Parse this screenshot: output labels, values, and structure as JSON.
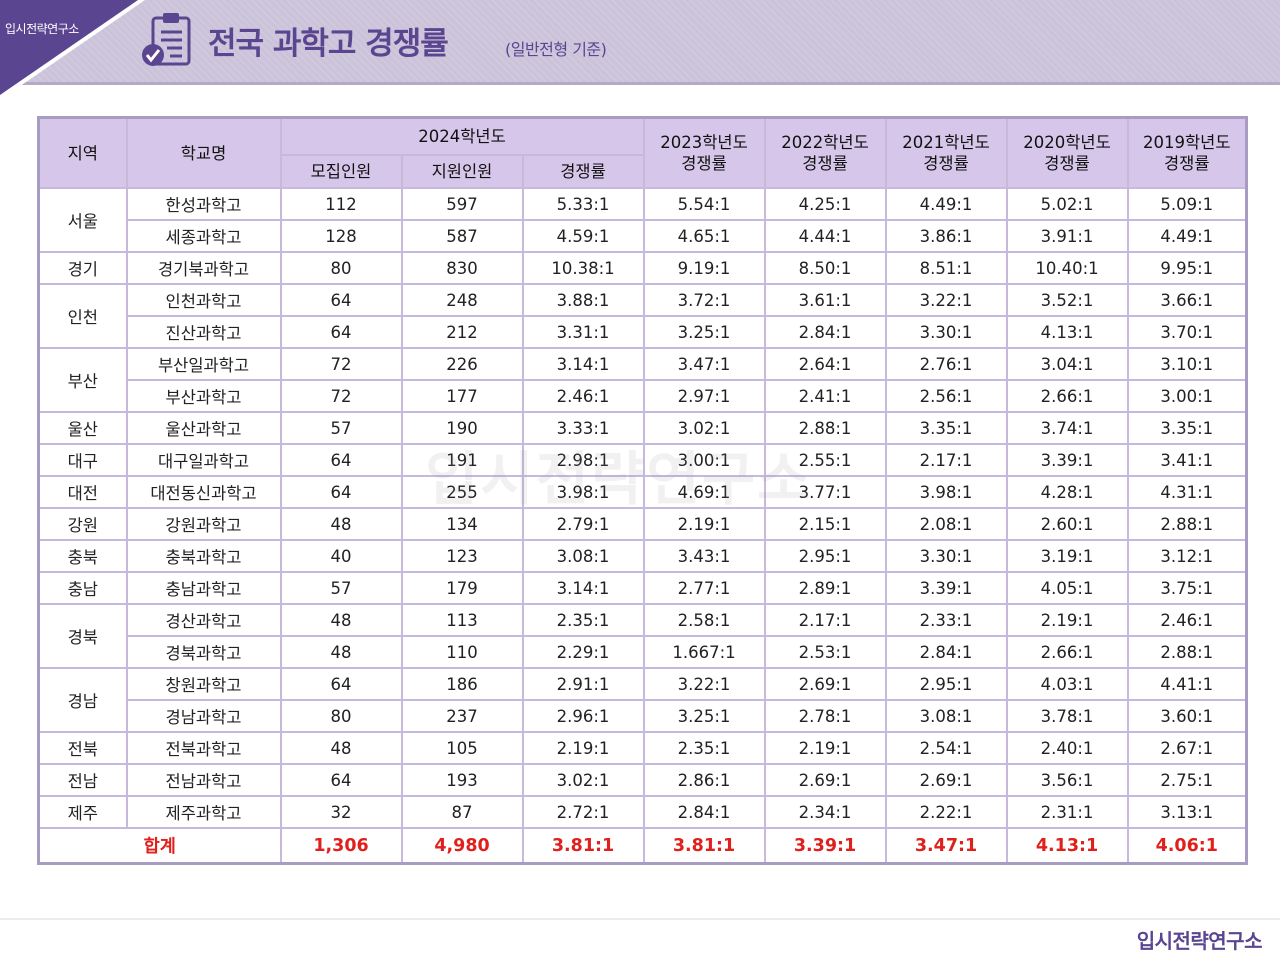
{
  "brand": "입시전략연구소",
  "title": "전국 과학고 경쟁률",
  "subtitle": "(일반전형 기준)",
  "watermark": "입시전략연구소",
  "table": {
    "header_region": "지역",
    "header_school": "학교명",
    "header_2024": "2024학년도",
    "sub_headers": [
      "모집인원",
      "지원인원",
      "경쟁률"
    ],
    "years": [
      {
        "year": "2023학년도",
        "label": "경쟁률"
      },
      {
        "year": "2022학년도",
        "label": "경쟁률"
      },
      {
        "year": "2021학년도",
        "label": "경쟁률"
      },
      {
        "year": "2020학년도",
        "label": "경쟁률"
      },
      {
        "year": "2019학년도",
        "label": "경쟁률"
      }
    ],
    "regions": [
      {
        "name": "서울",
        "schools": [
          {
            "school": "한성과학고",
            "recruit": "112",
            "applicants": "597",
            "rates": [
              "5.33:1",
              "5.54:1",
              "4.25:1",
              "4.49:1",
              "5.02:1",
              "5.09:1"
            ]
          },
          {
            "school": "세종과학고",
            "recruit": "128",
            "applicants": "587",
            "rates": [
              "4.59:1",
              "4.65:1",
              "4.44:1",
              "3.86:1",
              "3.91:1",
              "4.49:1"
            ]
          }
        ]
      },
      {
        "name": "경기",
        "schools": [
          {
            "school": "경기북과학고",
            "recruit": "80",
            "applicants": "830",
            "rates": [
              "10.38:1",
              "9.19:1",
              "8.50:1",
              "8.51:1",
              "10.40:1",
              "9.95:1"
            ]
          }
        ]
      },
      {
        "name": "인천",
        "schools": [
          {
            "school": "인천과학고",
            "recruit": "64",
            "applicants": "248",
            "rates": [
              "3.88:1",
              "3.72:1",
              "3.61:1",
              "3.22:1",
              "3.52:1",
              "3.66:1"
            ]
          },
          {
            "school": "진산과학고",
            "recruit": "64",
            "applicants": "212",
            "rates": [
              "3.31:1",
              "3.25:1",
              "2.84:1",
              "3.30:1",
              "4.13:1",
              "3.70:1"
            ]
          }
        ]
      },
      {
        "name": "부산",
        "schools": [
          {
            "school": "부산일과학고",
            "recruit": "72",
            "applicants": "226",
            "rates": [
              "3.14:1",
              "3.47:1",
              "2.64:1",
              "2.76:1",
              "3.04:1",
              "3.10:1"
            ]
          },
          {
            "school": "부산과학고",
            "recruit": "72",
            "applicants": "177",
            "rates": [
              "2.46:1",
              "2.97:1",
              "2.41:1",
              "2.56:1",
              "2.66:1",
              "3.00:1"
            ]
          }
        ]
      },
      {
        "name": "울산",
        "schools": [
          {
            "school": "울산과학고",
            "recruit": "57",
            "applicants": "190",
            "rates": [
              "3.33:1",
              "3.02:1",
              "2.88:1",
              "3.35:1",
              "3.74:1",
              "3.35:1"
            ]
          }
        ]
      },
      {
        "name": "대구",
        "schools": [
          {
            "school": "대구일과학고",
            "recruit": "64",
            "applicants": "191",
            "rates": [
              "2.98:1",
              "3.00:1",
              "2.55:1",
              "2.17:1",
              "3.39:1",
              "3.41:1"
            ]
          }
        ]
      },
      {
        "name": "대전",
        "schools": [
          {
            "school": "대전동신과학고",
            "recruit": "64",
            "applicants": "255",
            "rates": [
              "3.98:1",
              "4.69:1",
              "3.77:1",
              "3.98:1",
              "4.28:1",
              "4.31:1"
            ]
          }
        ]
      },
      {
        "name": "강원",
        "schools": [
          {
            "school": "강원과학고",
            "recruit": "48",
            "applicants": "134",
            "rates": [
              "2.79:1",
              "2.19:1",
              "2.15:1",
              "2.08:1",
              "2.60:1",
              "2.88:1"
            ]
          }
        ]
      },
      {
        "name": "충북",
        "schools": [
          {
            "school": "충북과학고",
            "recruit": "40",
            "applicants": "123",
            "rates": [
              "3.08:1",
              "3.43:1",
              "2.95:1",
              "3.30:1",
              "3.19:1",
              "3.12:1"
            ]
          }
        ]
      },
      {
        "name": "충남",
        "schools": [
          {
            "school": "충남과학고",
            "recruit": "57",
            "applicants": "179",
            "rates": [
              "3.14:1",
              "2.77:1",
              "2.89:1",
              "3.39:1",
              "4.05:1",
              "3.75:1"
            ]
          }
        ]
      },
      {
        "name": "경북",
        "schools": [
          {
            "school": "경산과학고",
            "recruit": "48",
            "applicants": "113",
            "rates": [
              "2.35:1",
              "2.58:1",
              "2.17:1",
              "2.33:1",
              "2.19:1",
              "2.46:1"
            ]
          },
          {
            "school": "경북과학고",
            "recruit": "48",
            "applicants": "110",
            "rates": [
              "2.29:1",
              "1.667:1",
              "2.53:1",
              "2.84:1",
              "2.66:1",
              "2.88:1"
            ]
          }
        ]
      },
      {
        "name": "경남",
        "schools": [
          {
            "school": "창원과학고",
            "recruit": "64",
            "applicants": "186",
            "rates": [
              "2.91:1",
              "3.22:1",
              "2.69:1",
              "2.95:1",
              "4.03:1",
              "4.41:1"
            ]
          },
          {
            "school": "경남과학고",
            "recruit": "80",
            "applicants": "237",
            "rates": [
              "2.96:1",
              "3.25:1",
              "2.78:1",
              "3.08:1",
              "3.78:1",
              "3.60:1"
            ]
          }
        ]
      },
      {
        "name": "전북",
        "schools": [
          {
            "school": "전북과학고",
            "recruit": "48",
            "applicants": "105",
            "rates": [
              "2.19:1",
              "2.35:1",
              "2.19:1",
              "2.54:1",
              "2.40:1",
              "2.67:1"
            ]
          }
        ]
      },
      {
        "name": "전남",
        "schools": [
          {
            "school": "전남과학고",
            "recruit": "64",
            "applicants": "193",
            "rates": [
              "3.02:1",
              "2.86:1",
              "2.69:1",
              "2.69:1",
              "3.56:1",
              "2.75:1"
            ]
          }
        ]
      },
      {
        "name": "제주",
        "schools": [
          {
            "school": "제주과학고",
            "recruit": "32",
            "applicants": "87",
            "rates": [
              "2.72:1",
              "2.84:1",
              "2.34:1",
              "2.22:1",
              "2.31:1",
              "3.13:1"
            ]
          }
        ]
      }
    ],
    "total": {
      "label": "합계",
      "recruit": "1,306",
      "applicants": "4,980",
      "rates": [
        "3.81:1",
        "3.81:1",
        "3.39:1",
        "3.47:1",
        "4.13:1",
        "4.06:1"
      ]
    }
  },
  "colors": {
    "brand_purple": "#5a4690",
    "header_fill": "#d6c7ea",
    "grid_line": "#c7b9dc",
    "total_red": "#e0201c"
  },
  "icons": [
    "clipboard-check-icon"
  ]
}
